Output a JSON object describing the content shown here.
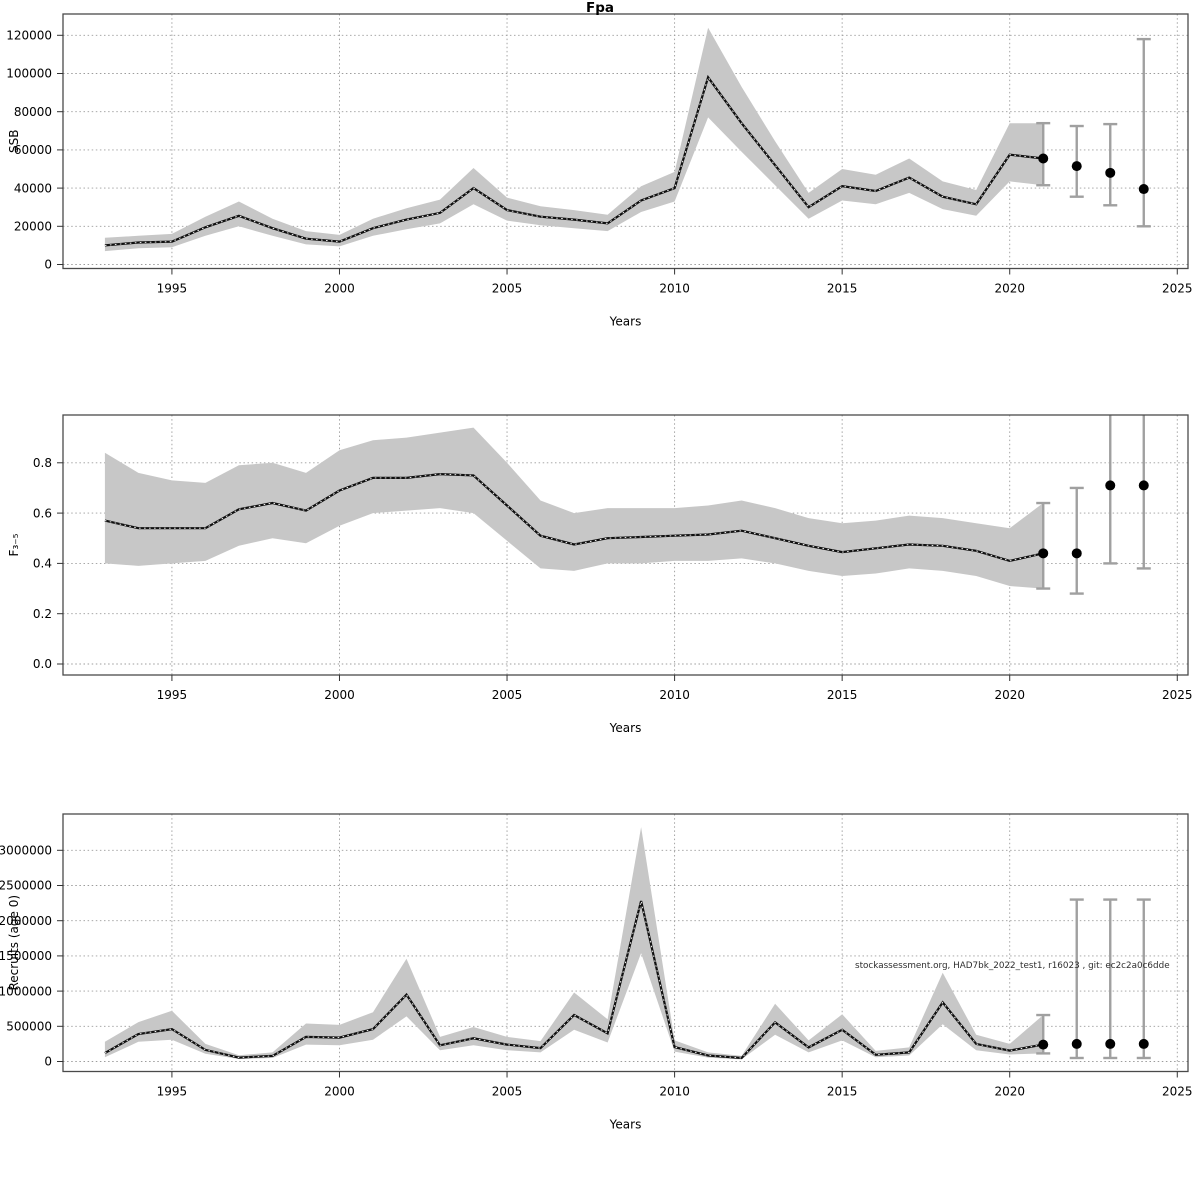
{
  "figure": {
    "title": "Fpa",
    "watermark": "stockassessment.org, HAD7bk_2022_test1, r16023 , git: ec2c2a0c6dde",
    "xlabel": "Years"
  },
  "colors": {
    "ribbon": "#c7c7c7",
    "median_line": "#0f0f0f",
    "median_dash_overlay": "#ffffff",
    "error_bar": "#a0a0a0",
    "forecast_dot": "#000000",
    "grid": "#9c9c9c",
    "frame": "#4a4a4a",
    "text": "#000000"
  },
  "chart_data": [
    {
      "type": "line",
      "name": "ssb",
      "title": "Fpa",
      "ylabel": "SSB",
      "xlabel": "Years",
      "legend": "none",
      "grid": "dotted",
      "xlim": [
        1991.75,
        2025.32
      ],
      "ylim": [
        -2094,
        131150
      ],
      "xticks": [
        1995,
        2000,
        2005,
        2010,
        2015,
        2020,
        2025
      ],
      "yticks": [
        0,
        20000,
        40000,
        60000,
        80000,
        100000,
        120000
      ],
      "ytick_labels": [
        "0",
        "20000",
        "40000",
        "60000",
        "80000",
        "100000",
        "120000"
      ],
      "x": [
        1993,
        1994,
        1995,
        1996,
        1997,
        1998,
        1999,
        2000,
        2001,
        2002,
        2003,
        2004,
        2005,
        2006,
        2007,
        2008,
        2009,
        2010,
        2011,
        2012,
        2013,
        2014,
        2015,
        2016,
        2017,
        2018,
        2019,
        2020,
        2021
      ],
      "series": [
        {
          "name": "median",
          "values": [
            10000,
            11500,
            12000,
            19500,
            25500,
            19000,
            13500,
            12000,
            19000,
            23500,
            27000,
            40000,
            28500,
            25000,
            23500,
            21500,
            33500,
            40000,
            98000,
            74000,
            52000,
            30000,
            41000,
            38500,
            45500,
            35500,
            31500,
            57500,
            55500
          ]
        },
        {
          "name": "ci_low",
          "values": [
            7000,
            8500,
            9000,
            15000,
            20000,
            15000,
            10500,
            9500,
            15000,
            18500,
            21500,
            31500,
            23000,
            20500,
            19000,
            17500,
            27500,
            33000,
            77000,
            59000,
            41500,
            24000,
            33500,
            31500,
            37500,
            29000,
            25500,
            43500,
            41500
          ]
        },
        {
          "name": "ci_high",
          "values": [
            14000,
            15000,
            16000,
            25000,
            33000,
            24000,
            17500,
            15500,
            24000,
            29500,
            34000,
            50500,
            35000,
            30500,
            28500,
            26000,
            41000,
            48500,
            124000,
            93000,
            64500,
            37500,
            50000,
            47000,
            55500,
            43500,
            39000,
            74000,
            74000
          ]
        }
      ],
      "forecast": {
        "years": [
          2021,
          2022,
          2023,
          2024
        ],
        "values": [
          55500,
          51500,
          48000,
          39500
        ],
        "lo": [
          41500,
          35500,
          31000,
          20000
        ],
        "hi": [
          74000,
          72500,
          73500,
          118000
        ]
      }
    },
    {
      "type": "line",
      "name": "fbar",
      "title": "",
      "ylabel": "F₃₋₅",
      "xlabel": "Years",
      "legend": "none",
      "grid": "dotted",
      "xlim": [
        1991.75,
        2025.32
      ],
      "ylim": [
        -0.0437,
        0.99
      ],
      "xticks": [
        1995,
        2000,
        2005,
        2010,
        2015,
        2020,
        2025
      ],
      "yticks": [
        0.0,
        0.2,
        0.4,
        0.6,
        0.8
      ],
      "ytick_labels": [
        "0.0",
        "0.2",
        "0.4",
        "0.6",
        "0.8"
      ],
      "x": [
        1993,
        1994,
        1995,
        1996,
        1997,
        1998,
        1999,
        2000,
        2001,
        2002,
        2003,
        2004,
        2005,
        2006,
        2007,
        2008,
        2009,
        2010,
        2011,
        2012,
        2013,
        2014,
        2015,
        2016,
        2017,
        2018,
        2019,
        2020,
        2021
      ],
      "series": [
        {
          "name": "median",
          "values": [
            0.57,
            0.54,
            0.54,
            0.54,
            0.615,
            0.64,
            0.61,
            0.69,
            0.74,
            0.74,
            0.755,
            0.75,
            0.63,
            0.51,
            0.475,
            0.5,
            0.505,
            0.51,
            0.515,
            0.53,
            0.5,
            0.47,
            0.445,
            0.46,
            0.475,
            0.47,
            0.45,
            0.41,
            0.44
          ]
        },
        {
          "name": "ci_low",
          "values": [
            0.4,
            0.39,
            0.4,
            0.41,
            0.47,
            0.5,
            0.48,
            0.55,
            0.6,
            0.61,
            0.62,
            0.6,
            0.49,
            0.38,
            0.37,
            0.4,
            0.4,
            0.41,
            0.41,
            0.42,
            0.4,
            0.37,
            0.35,
            0.36,
            0.38,
            0.37,
            0.35,
            0.31,
            0.3
          ]
        },
        {
          "name": "ci_high",
          "values": [
            0.84,
            0.76,
            0.73,
            0.72,
            0.79,
            0.8,
            0.76,
            0.85,
            0.89,
            0.9,
            0.92,
            0.94,
            0.8,
            0.65,
            0.6,
            0.62,
            0.62,
            0.62,
            0.63,
            0.65,
            0.62,
            0.58,
            0.56,
            0.57,
            0.59,
            0.58,
            0.56,
            0.54,
            0.64
          ]
        }
      ],
      "forecast": {
        "years": [
          2021,
          2022,
          2023,
          2024
        ],
        "values": [
          0.44,
          0.44,
          0.71,
          0.71
        ],
        "lo": [
          0.3,
          0.28,
          0.4,
          0.38
        ],
        "hi": [
          0.64,
          0.7,
          1.05,
          1.05
        ]
      }
    },
    {
      "type": "line",
      "name": "recruits",
      "title": "",
      "ylabel": "Recruits (age 0)",
      "xlabel": "Years",
      "legend": "none",
      "grid": "dotted",
      "xlim": [
        1991.75,
        2025.32
      ],
      "ylim": [
        -142000,
        3515600
      ],
      "xticks": [
        1995,
        2000,
        2005,
        2010,
        2015,
        2020,
        2025
      ],
      "yticks": [
        0,
        500000,
        1000000,
        1500000,
        2000000,
        2500000,
        3000000
      ],
      "ytick_labels": [
        "0",
        "500000",
        "1000000",
        "1500000",
        "2000000",
        "2500000",
        "3000000"
      ],
      "x": [
        1993,
        1994,
        1995,
        1996,
        1997,
        1998,
        1999,
        2000,
        2001,
        2002,
        2003,
        2004,
        2005,
        2006,
        2007,
        2008,
        2009,
        2010,
        2011,
        2012,
        2013,
        2014,
        2015,
        2016,
        2017,
        2018,
        2019,
        2020,
        2021
      ],
      "series": [
        {
          "name": "median",
          "values": [
            120000,
            390000,
            460000,
            165000,
            55000,
            80000,
            350000,
            340000,
            460000,
            950000,
            230000,
            330000,
            240000,
            190000,
            660000,
            400000,
            2280000,
            205000,
            85000,
            50000,
            555000,
            200000,
            450000,
            95000,
            130000,
            840000,
            250000,
            155000,
            240000
          ]
        },
        {
          "name": "ci_low",
          "values": [
            60000,
            280000,
            310000,
            110000,
            35000,
            50000,
            240000,
            230000,
            310000,
            640000,
            160000,
            230000,
            160000,
            130000,
            450000,
            270000,
            1540000,
            140000,
            55000,
            30000,
            380000,
            130000,
            300000,
            60000,
            85000,
            530000,
            160000,
            100000,
            115000
          ]
        },
        {
          "name": "ci_high",
          "values": [
            280000,
            560000,
            720000,
            250000,
            90000,
            130000,
            540000,
            520000,
            700000,
            1460000,
            350000,
            490000,
            350000,
            290000,
            980000,
            600000,
            3330000,
            300000,
            130000,
            80000,
            820000,
            300000,
            670000,
            150000,
            200000,
            1260000,
            380000,
            250000,
            660000
          ]
        }
      ],
      "forecast": {
        "years": [
          2021,
          2022,
          2023,
          2024
        ],
        "values": [
          240000,
          250000,
          250000,
          250000
        ],
        "lo": [
          115000,
          50000,
          50000,
          50000
        ],
        "hi": [
          660000,
          2300000,
          2300000,
          2300000
        ]
      },
      "annotation": "stockassessment.org, HAD7bk_2022_test1, r16023 , git: ec2c2a0c6dde"
    }
  ]
}
